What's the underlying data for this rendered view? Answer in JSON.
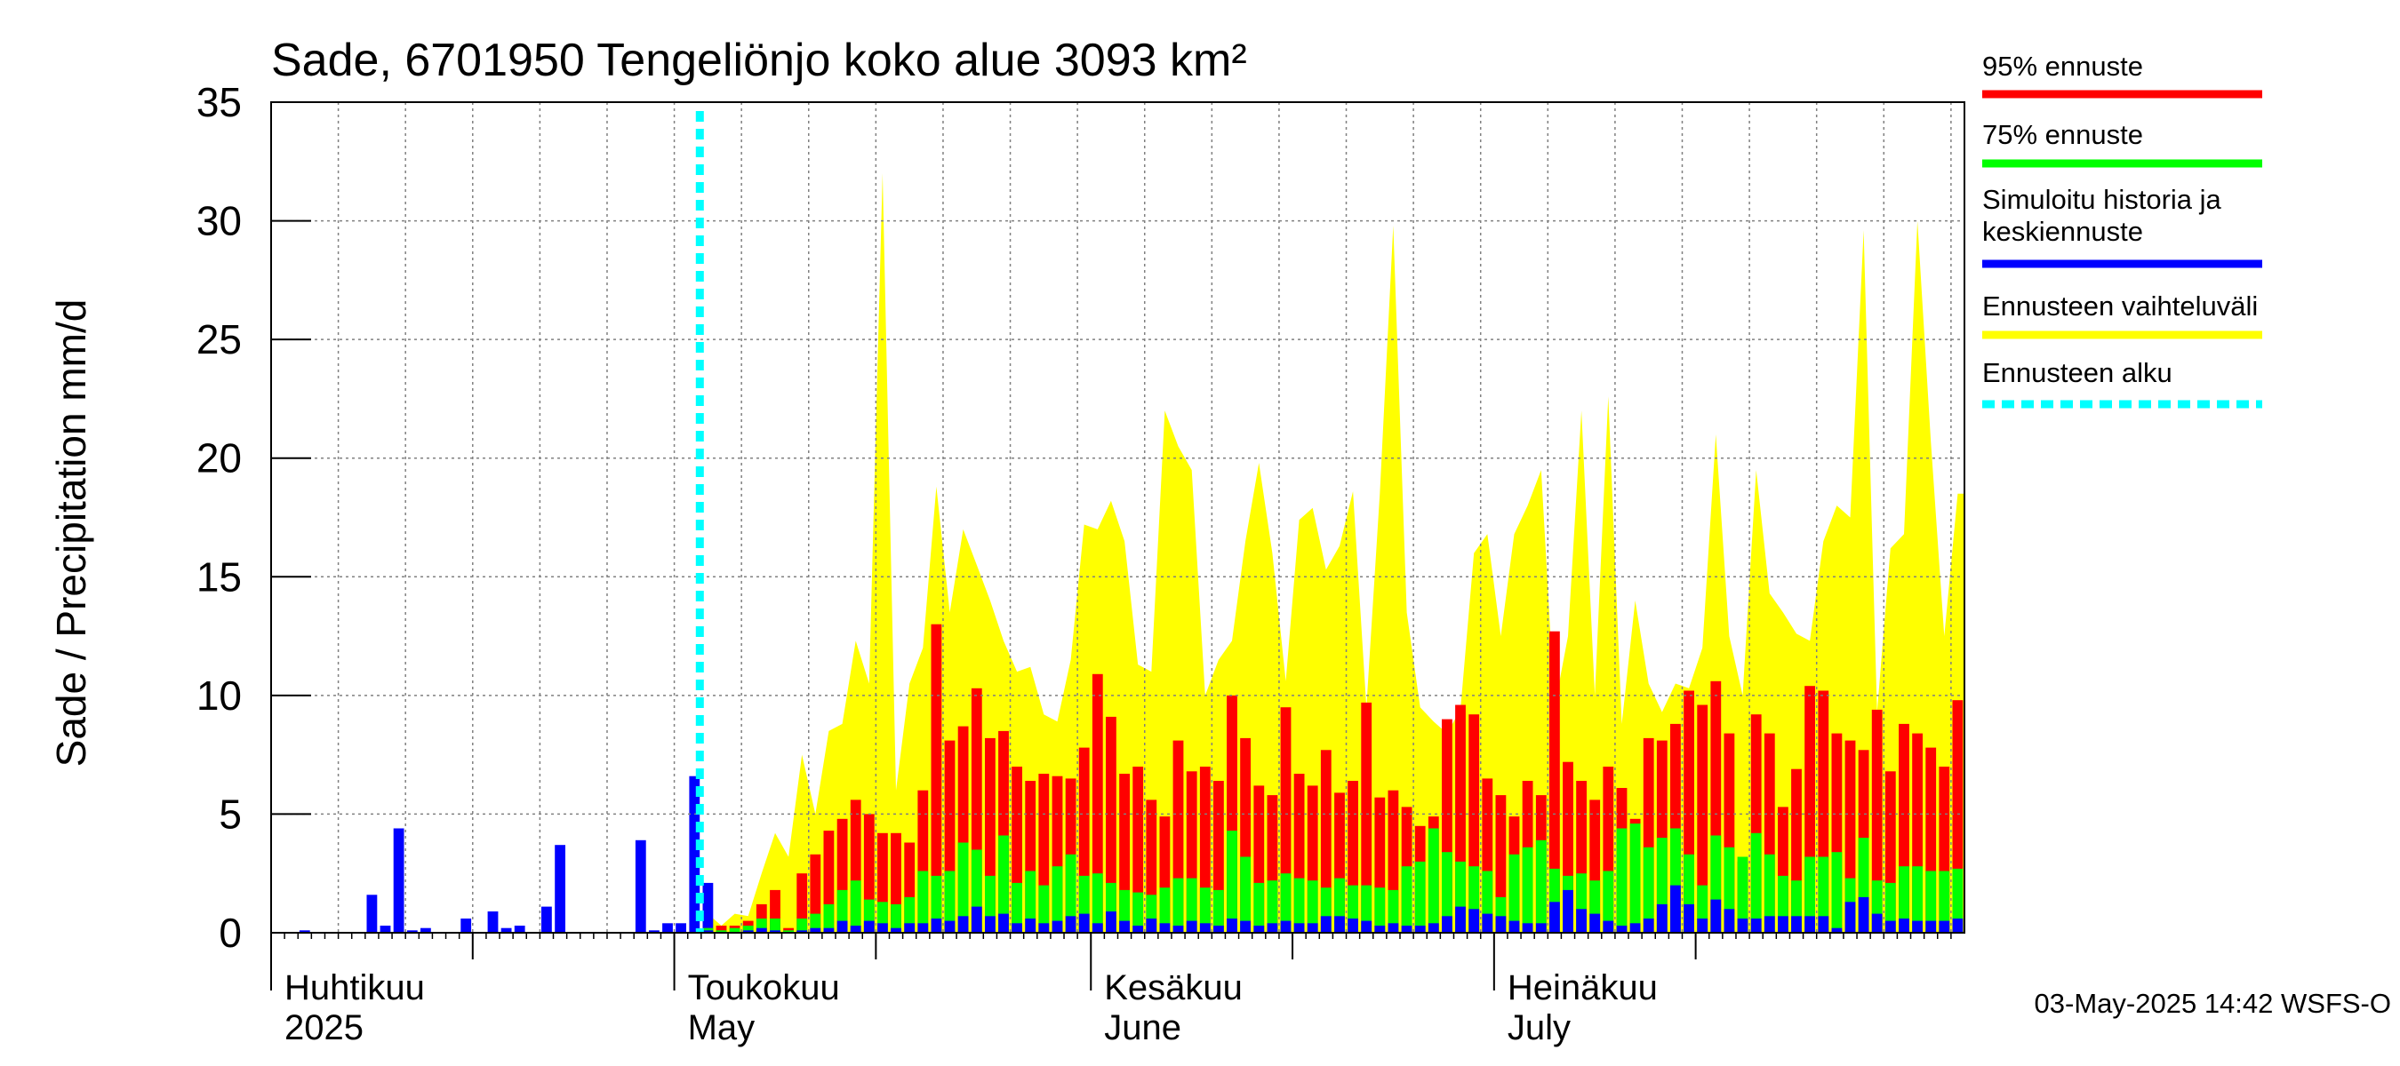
{
  "chart_data": {
    "type": "bar",
    "title": "Sade, 6701950 Tengeliönjo koko alue 3093 km²",
    "ylabel": "Sade / Precipitation   mm/d",
    "ylim": [
      0,
      35
    ],
    "yticks": [
      0,
      5,
      10,
      15,
      20,
      25,
      30,
      35
    ],
    "grid": true,
    "legend_position": "right",
    "x_start": "2025-04-01",
    "forecast_start": "2025-05-03",
    "month_labels": [
      {
        "date": "2025-04-01",
        "fi": "Huhtikuu",
        "en": "2025"
      },
      {
        "date": "2025-05-01",
        "fi": "Toukokuu",
        "en": "May"
      },
      {
        "date": "2025-06-01",
        "fi": "Kesäkuu",
        "en": "June"
      },
      {
        "date": "2025-07-01",
        "fi": "Heinäkuu",
        "en": "July"
      }
    ],
    "history": {
      "name": "Simuloitu historia ja keskiennuste",
      "values": [
        0,
        0,
        0.1,
        0,
        0,
        0,
        0,
        1.6,
        0.3,
        4.4,
        0.1,
        0.2,
        0,
        0,
        0.6,
        0,
        0.9,
        0.2,
        0.3,
        0,
        1.1,
        3.7,
        0,
        0,
        0,
        0,
        0,
        3.9,
        0.1,
        0.4,
        0.4,
        6.6,
        2.1
      ]
    },
    "forecast": {
      "upper_range": [
        0.8,
        0.3,
        0.8,
        0.7,
        2.5,
        4.2,
        3.2,
        7.5,
        5.0,
        8.5,
        8.8,
        12.3,
        10.5,
        32.0,
        6.0,
        10.5,
        12.0,
        18.8,
        13.5,
        17.0,
        15.5,
        14.0,
        12.3,
        11.0,
        11.2,
        9.2,
        8.9,
        11.5,
        17.2,
        17.0,
        18.2,
        16.5,
        11.3,
        11.0,
        22.0,
        20.5,
        19.5,
        10.0,
        11.5,
        12.3,
        16.5,
        19.8,
        16.0,
        10.6,
        17.4,
        17.9,
        15.3,
        16.3,
        18.6,
        9.5,
        18.5,
        29.8,
        13.5,
        9.5,
        8.9,
        8.4,
        9.4,
        16.0,
        16.8,
        12.5,
        16.8,
        18.0,
        19.5,
        9.5,
        12.5,
        22.0,
        10.0,
        22.6,
        8.8,
        14.0,
        10.5,
        9.3,
        10.5,
        10.3,
        12.0,
        21.0,
        12.5,
        10.0,
        19.5,
        14.3,
        13.5,
        12.6,
        12.3,
        16.5,
        18.0,
        17.5,
        29.6,
        9.3,
        16.2,
        16.8,
        30.0,
        20.7,
        12.5,
        18.5
      ],
      "p95": [
        0.2,
        0.3,
        0.3,
        0.5,
        1.2,
        1.8,
        0.2,
        2.5,
        3.3,
        4.3,
        4.8,
        5.6,
        5.0,
        4.2,
        4.2,
        3.8,
        6.0,
        13.0,
        8.1,
        8.7,
        10.3,
        8.2,
        8.5,
        7.0,
        6.4,
        6.7,
        6.6,
        6.5,
        7.8,
        10.9,
        9.1,
        6.7,
        7.0,
        5.6,
        4.9,
        8.1,
        6.8,
        7.0,
        6.4,
        10.0,
        8.2,
        6.2,
        5.8,
        9.5,
        6.7,
        6.2,
        7.7,
        5.9,
        6.4,
        9.7,
        5.7,
        6.0,
        5.3,
        4.5,
        4.9,
        9.0,
        9.6,
        9.2,
        6.5,
        5.8,
        4.9,
        6.4,
        5.8,
        12.7,
        7.2,
        6.4,
        5.6,
        7.0,
        6.1,
        4.8,
        8.2,
        8.1,
        8.8,
        10.2,
        9.6,
        10.6,
        8.4,
        3.0,
        9.2,
        8.4,
        5.3,
        6.9,
        10.4,
        10.2,
        8.4,
        8.1,
        7.7,
        9.4,
        6.8,
        8.8,
        8.4,
        7.8,
        7.0,
        9.8
      ],
      "p75": [
        0.2,
        0.1,
        0.2,
        0.3,
        0.6,
        0.6,
        0.1,
        0.6,
        0.8,
        1.2,
        1.8,
        2.2,
        1.4,
        1.3,
        1.2,
        1.5,
        2.6,
        2.4,
        2.6,
        3.8,
        3.5,
        2.4,
        4.1,
        2.1,
        2.6,
        2.0,
        2.8,
        3.3,
        2.4,
        2.5,
        2.1,
        1.8,
        1.7,
        1.6,
        1.9,
        2.3,
        2.3,
        1.9,
        1.8,
        4.3,
        3.2,
        2.1,
        2.2,
        2.5,
        2.3,
        2.2,
        1.9,
        2.3,
        2.0,
        2.0,
        1.9,
        1.8,
        2.8,
        3.0,
        4.4,
        3.4,
        3.0,
        2.8,
        2.6,
        1.5,
        3.3,
        3.6,
        3.9,
        2.7,
        2.4,
        2.5,
        2.2,
        2.6,
        4.4,
        4.6,
        3.6,
        4.0,
        4.4,
        3.3,
        2.0,
        4.1,
        3.6,
        3.2,
        4.2,
        3.3,
        2.4,
        2.2,
        3.2,
        3.2,
        3.4,
        2.3,
        4.0,
        2.2,
        2.1,
        2.8,
        2.8,
        2.6,
        2.6,
        2.7
      ],
      "mean": [
        0.1,
        0,
        0,
        0.1,
        0.2,
        0.1,
        0,
        0.1,
        0.2,
        0.2,
        0.5,
        0.3,
        0.5,
        0.4,
        0.2,
        0.4,
        0.4,
        0.6,
        0.5,
        0.7,
        1.1,
        0.7,
        0.8,
        0.4,
        0.6,
        0.4,
        0.5,
        0.7,
        0.8,
        0.4,
        0.9,
        0.5,
        0.3,
        0.6,
        0.4,
        0.3,
        0.5,
        0.4,
        0.3,
        0.6,
        0.5,
        0.3,
        0.4,
        0.5,
        0.4,
        0.4,
        0.7,
        0.7,
        0.6,
        0.5,
        0.3,
        0.4,
        0.3,
        0.3,
        0.4,
        0.7,
        1.1,
        1.0,
        0.8,
        0.7,
        0.5,
        0.4,
        0.4,
        1.3,
        1.8,
        1.0,
        0.8,
        0.5,
        0.3,
        0.4,
        0.6,
        1.2,
        2.0,
        1.2,
        0.6,
        1.4,
        1.0,
        0.6,
        0.6,
        0.7,
        0.7,
        0.7,
        0.7,
        0.7,
        0.2,
        1.3,
        1.5,
        0.8,
        0.5,
        0.6,
        0.5,
        0.5,
        0.5,
        0.6
      ]
    }
  },
  "legend": [
    {
      "label": "95% ennuste",
      "color": "#ff0000",
      "style": "solid"
    },
    {
      "label": "75% ennuste",
      "color": "#00ff00",
      "style": "solid"
    },
    {
      "label_lines": [
        "Simuloitu historia ja",
        "keskiennuste"
      ],
      "color": "#0000ff",
      "style": "solid"
    },
    {
      "label": "Ennusteen vaihteluväli",
      "color": "#ffff00",
      "style": "solid"
    },
    {
      "label": "Ennusteen alku",
      "color": "#00ffff",
      "style": "dashed"
    }
  ],
  "colors": {
    "range": "#ffff00",
    "p95": "#ff0000",
    "p75": "#00ff00",
    "mean": "#0000ff",
    "history": "#0000ff",
    "forecast_start": "#00ffff",
    "grid": "#808080",
    "axis": "#000000"
  },
  "footer": "03-May-2025 14:42 WSFS-O"
}
